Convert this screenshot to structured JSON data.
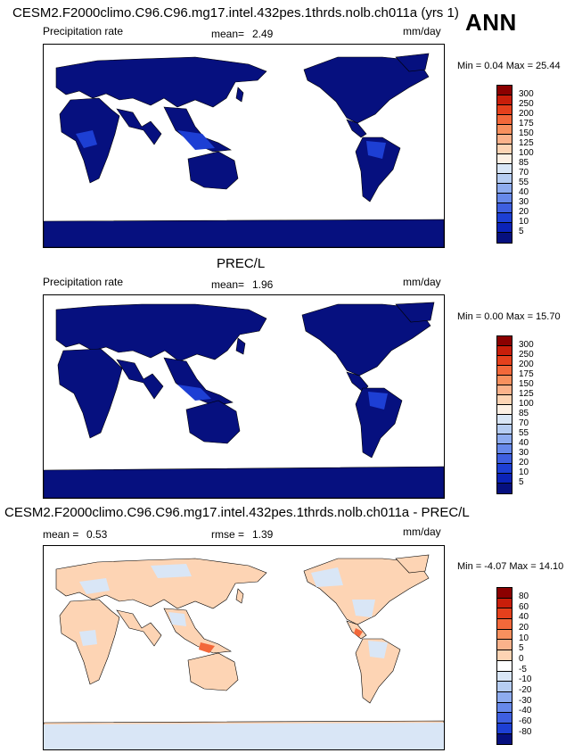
{
  "header": {
    "test_title": "CESM2.F2000climo.C96.C96.mg17.intel.432pes.1thrds.nolb.ch011a (yrs 1)",
    "season": "ANN"
  },
  "panels": [
    {
      "variable": "Precipitation rate",
      "stat_label": "mean=",
      "stat_value": "2.49",
      "units": "mm/day",
      "minmax": "Min =   0.04 Max =  25.44",
      "levels": [
        "300",
        "250",
        "200",
        "175",
        "150",
        "125",
        "100",
        "85",
        "70",
        "55",
        "40",
        "30",
        "20",
        "10",
        "5"
      ],
      "colors": [
        "#8b0000",
        "#c81e0a",
        "#e5401c",
        "#f3683a",
        "#f8905e",
        "#fbb28b",
        "#fdd4b4",
        "#fdf0e4",
        "#d9e6f6",
        "#b6cdf2",
        "#8eacef",
        "#6789ea",
        "#3e5fe0",
        "#1d3fd4",
        "#0b23b8",
        "#06107f"
      ]
    },
    {
      "title": "PREC/L",
      "variable": "Precipitation rate",
      "stat_label": "mean=",
      "stat_value": "1.96",
      "units": "mm/day",
      "minmax": "Min =   0.00 Max =  15.70",
      "levels": [
        "300",
        "250",
        "200",
        "175",
        "150",
        "125",
        "100",
        "85",
        "70",
        "55",
        "40",
        "30",
        "20",
        "10",
        "5"
      ],
      "colors": [
        "#8b0000",
        "#c81e0a",
        "#e5401c",
        "#f3683a",
        "#f8905e",
        "#fbb28b",
        "#fdd4b4",
        "#fdf0e4",
        "#d9e6f6",
        "#b6cdf2",
        "#8eacef",
        "#6789ea",
        "#3e5fe0",
        "#1d3fd4",
        "#0b23b8",
        "#06107f"
      ]
    },
    {
      "title": "CESM2.F2000climo.C96.C96.mg17.intel.432pes.1thrds.nolb.ch011a - PREC/L",
      "stat_label": "mean =",
      "stat_value": "0.53",
      "rmse_label": "rmse =",
      "rmse_value": "1.39",
      "units": "mm/day",
      "minmax": "Min =  -4.07 Max =  14.10",
      "levels": [
        "80",
        "60",
        "40",
        "20",
        "10",
        "5",
        "0",
        "-5",
        "-10",
        "-20",
        "-30",
        "-40",
        "-60",
        "-80"
      ],
      "colors": [
        "#8b0000",
        "#c81e0a",
        "#e5401c",
        "#f3683a",
        "#f8905e",
        "#fbb28b",
        "#fdd4b4",
        "#ffffff",
        "#d9e6f6",
        "#b6cdf2",
        "#8eacef",
        "#6789ea",
        "#3e5fe0",
        "#1d3fd4",
        "#06107f"
      ]
    }
  ]
}
